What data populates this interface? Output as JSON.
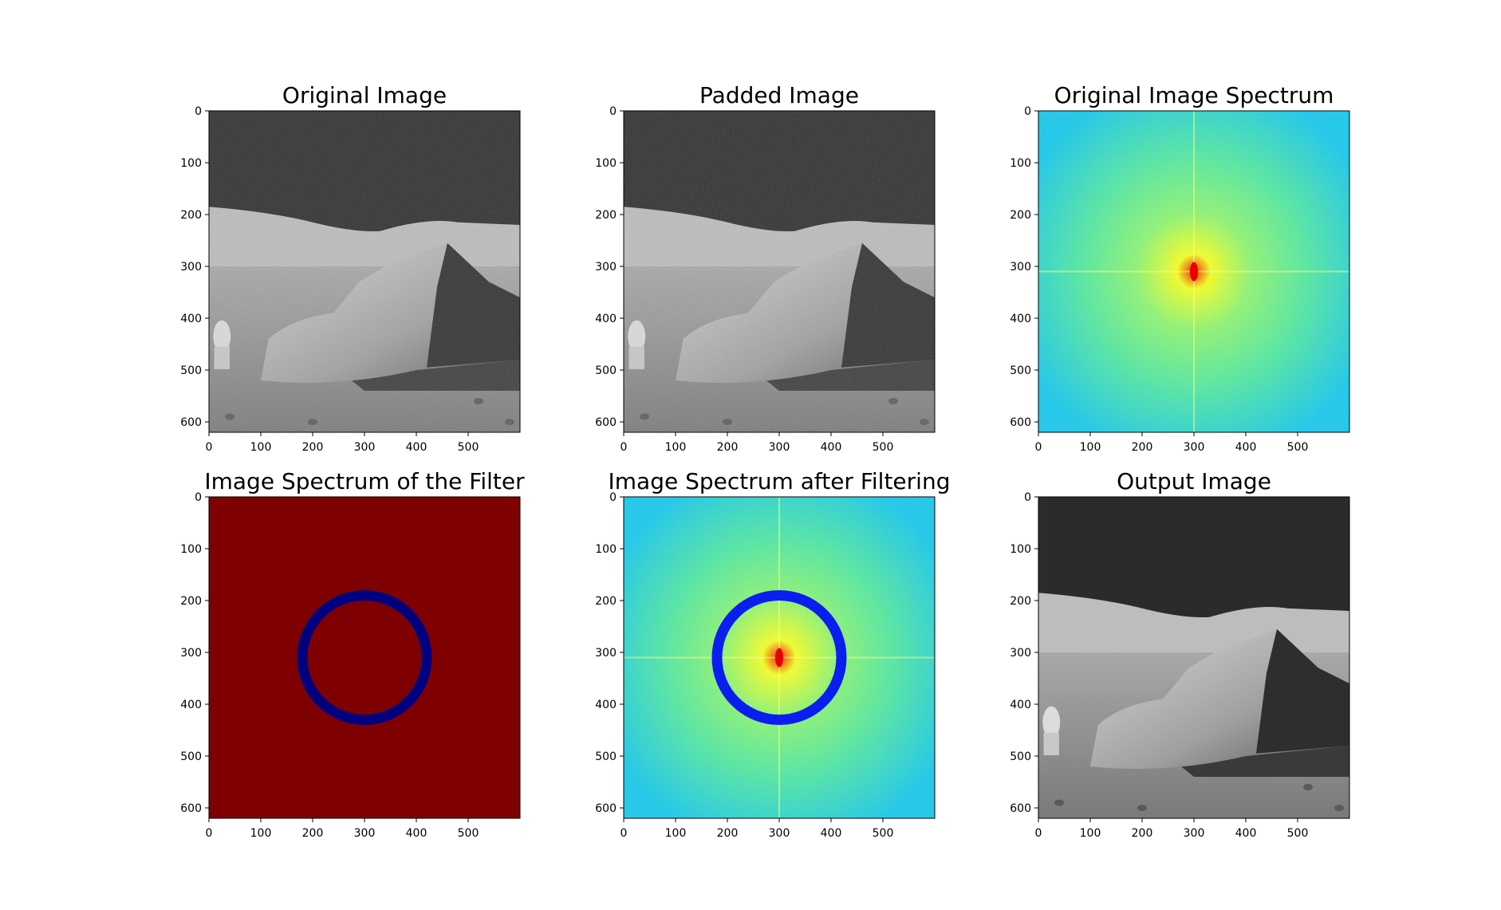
{
  "figure": {
    "panels": [
      {
        "title": "Original Image",
        "kind": "grayscale-moon"
      },
      {
        "title": "Padded Image",
        "kind": "grayscale-moon"
      },
      {
        "title": "Original Image Spectrum",
        "kind": "spectrum"
      },
      {
        "title": "Image Spectrum of the Filter",
        "kind": "filter-ring"
      },
      {
        "title": "Image Spectrum after Filtering",
        "kind": "spectrum-ring"
      },
      {
        "title": "Output Image",
        "kind": "grayscale-moon-clean"
      }
    ],
    "x_ticks": [
      "0",
      "100",
      "200",
      "300",
      "400",
      "500"
    ],
    "y_ticks": [
      "0",
      "100",
      "200",
      "300",
      "400",
      "500",
      "600"
    ],
    "x_range": [
      0,
      600
    ],
    "y_range": [
      0,
      620
    ],
    "ring": {
      "center": [
        300,
        310
      ],
      "outer_radius": 130,
      "inner_radius": 110
    },
    "colors": {
      "filter_background": "#7f0000",
      "filter_ring": "#00007f",
      "ring_on_spectrum": "#0a1ef0",
      "spectrum_low": "#23c8e6",
      "spectrum_mid": "#5ff08c",
      "spectrum_high": "#ffff1e",
      "spectrum_peak": "#e60000",
      "sky": "#2b2b2b",
      "ground": "#8c8c8c"
    }
  }
}
